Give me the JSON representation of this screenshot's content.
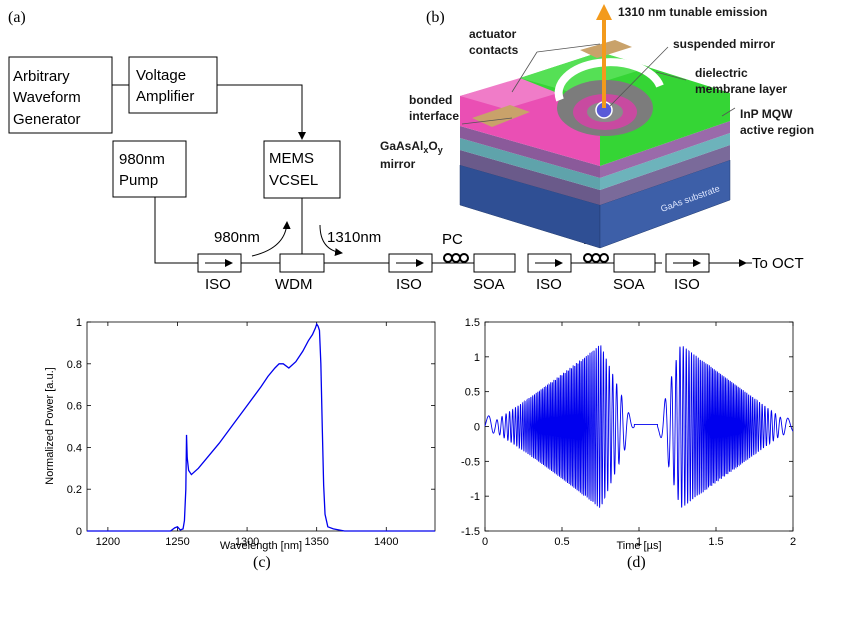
{
  "panels": {
    "a": "(a)",
    "b": "(b)",
    "c": "(c)",
    "d": "(d)"
  },
  "setup": {
    "awg": [
      "Arbitrary",
      "Waveform",
      "Generator"
    ],
    "amplifier": [
      "Voltage",
      "Amplifier"
    ],
    "pump": [
      "980nm",
      "Pump"
    ],
    "vcsel": [
      "MEMS",
      "VCSEL"
    ],
    "wdm": "WDM",
    "iso": "ISO",
    "soa": "SOA",
    "pc": "PC",
    "label_980": "980nm",
    "label_1310": "1310nm",
    "output": "To OCT"
  },
  "device": {
    "emission": "1310 nm tunable emission",
    "actuator": [
      "actuator",
      "contacts"
    ],
    "suspended_mirror": "suspended mirror",
    "dielectric": [
      "dielectric",
      "membrane layer"
    ],
    "bonded": [
      "bonded",
      "interface"
    ],
    "inp": [
      "InP MQW",
      "active region"
    ],
    "gaas_mirror_main": "GaAsAl",
    "gaas_mirror_x": "x",
    "gaas_mirror_o": "O",
    "gaas_mirror_y": "y",
    "gaas_mirror_line2": "mirror",
    "substrate": "GaAs substrate",
    "colors": {
      "green": "#35d535",
      "pink": "#ea4fb4",
      "gold": "#c9a26a",
      "substrate": "#3d5fa8",
      "teal": "#5fa3ab",
      "emission": "#f39a1c"
    }
  },
  "chart_data": [
    {
      "type": "line",
      "panel": "(c)",
      "xlabel": "Wavelength [nm]",
      "ylabel": "Normalized Power [a.u.]",
      "xlim": [
        1185,
        1435
      ],
      "ylim": [
        0,
        1
      ],
      "xticks": [
        1200,
        1250,
        1300,
        1350,
        1400
      ],
      "yticks": [
        0,
        0.2,
        0.4,
        0.6,
        0.8,
        1
      ],
      "ytick_labels": [
        "0",
        "0.2",
        "0.4",
        "0.6",
        "0.8",
        "1"
      ],
      "series": [
        {
          "color": "#0000ee",
          "x": [
            1185,
            1245,
            1248,
            1250,
            1252,
            1254,
            1255,
            1256,
            1256.5,
            1257,
            1258,
            1260,
            1265,
            1270,
            1280,
            1290,
            1300,
            1310,
            1315,
            1320,
            1323,
            1326,
            1330,
            1335,
            1340,
            1344,
            1347,
            1349,
            1350,
            1351,
            1352,
            1353,
            1354,
            1355,
            1356,
            1358,
            1362,
            1370,
            1435
          ],
          "y": [
            0,
            0,
            0.015,
            0.02,
            0.005,
            0.01,
            0.05,
            0.2,
            0.46,
            0.35,
            0.29,
            0.27,
            0.3,
            0.34,
            0.42,
            0.51,
            0.6,
            0.69,
            0.74,
            0.78,
            0.8,
            0.8,
            0.78,
            0.81,
            0.86,
            0.91,
            0.94,
            0.97,
            0.99,
            0.98,
            0.96,
            0.8,
            0.5,
            0.22,
            0.08,
            0.02,
            0.01,
            0,
            0
          ]
        }
      ]
    },
    {
      "type": "line",
      "panel": "(d)",
      "xlabel": "Time [µs]",
      "ylabel": "",
      "xlim": [
        0,
        2
      ],
      "ylim": [
        -1.5,
        1.5
      ],
      "xticks": [
        0,
        0.5,
        1,
        1.5,
        2
      ],
      "xtick_labels": [
        "0",
        "0.5",
        "1",
        "1.5",
        "2"
      ],
      "yticks": [
        -1.5,
        -1,
        -0.5,
        0,
        0.5,
        1,
        1.5
      ],
      "ytick_labels": [
        "-1.5",
        "-1",
        "-0.5",
        "0",
        "0.5",
        "1",
        "1.5"
      ],
      "series": [
        {
          "color": "#0000ee",
          "envelope_peak_times": [
            0.75,
            1.27
          ],
          "envelope_peak_amplitude": 1.18,
          "flat_interval": [
            0.97,
            1.12
          ],
          "flat_level": 0.03
        }
      ]
    }
  ]
}
